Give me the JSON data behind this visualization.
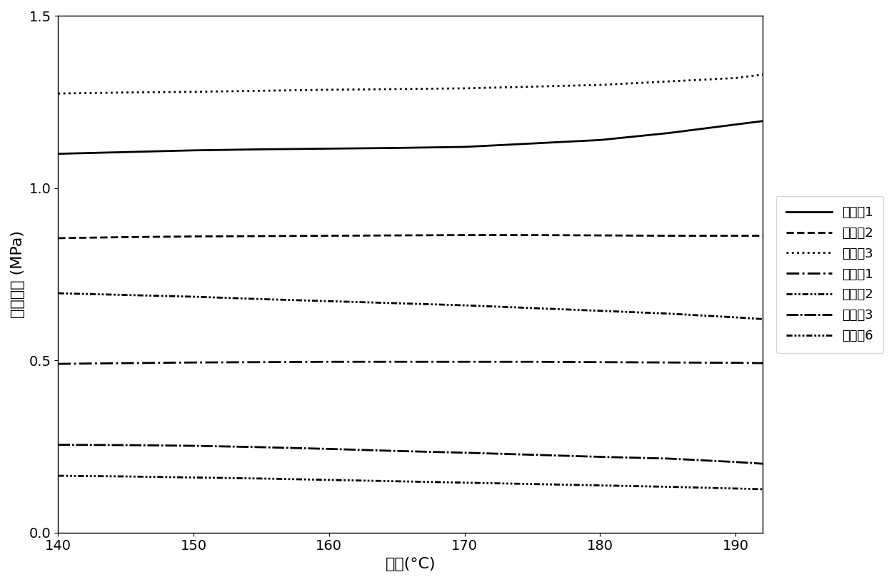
{
  "title": "",
  "xlabel": "温度(°C)",
  "ylabel": "储能模量 (MPa)",
  "xlim": [
    140,
    192
  ],
  "ylim": [
    0.0,
    1.5
  ],
  "xticks": [
    140,
    150,
    160,
    170,
    180,
    190
  ],
  "yticks": [
    0.0,
    0.5,
    1.0,
    1.5
  ],
  "x": [
    140,
    145,
    150,
    155,
    160,
    165,
    170,
    175,
    180,
    185,
    190,
    192
  ],
  "series": [
    {
      "label": "实施例1",
      "linestyle": "solid",
      "linewidth": 2.0,
      "color": "#000000",
      "y": [
        1.1,
        1.105,
        1.11,
        1.113,
        1.115,
        1.117,
        1.12,
        1.13,
        1.14,
        1.16,
        1.185,
        1.195
      ]
    },
    {
      "label": "实施例2",
      "linestyle": "dashed",
      "linewidth": 2.0,
      "color": "#000000",
      "y": [
        0.855,
        0.858,
        0.86,
        0.861,
        0.862,
        0.863,
        0.864,
        0.864,
        0.863,
        0.862,
        0.862,
        0.862
      ]
    },
    {
      "label": "实施例3",
      "linestyle": "dotted",
      "linewidth": 2.0,
      "color": "#000000",
      "y": [
        1.275,
        1.278,
        1.28,
        1.283,
        1.286,
        1.288,
        1.29,
        1.295,
        1.3,
        1.31,
        1.32,
        1.33
      ]
    },
    {
      "label": "对比例1",
      "linestyle": "dashdot",
      "linewidth": 2.0,
      "color": "#000000",
      "y": [
        0.49,
        0.492,
        0.494,
        0.495,
        0.496,
        0.496,
        0.496,
        0.496,
        0.495,
        0.494,
        0.493,
        0.492
      ]
    },
    {
      "label": "对比例2",
      "linestyle": "custom_dash_dot_dot",
      "linewidth": 2.0,
      "color": "#000000",
      "y": [
        0.695,
        0.69,
        0.685,
        0.678,
        0.672,
        0.666,
        0.66,
        0.652,
        0.644,
        0.636,
        0.625,
        0.62
      ]
    },
    {
      "label": "对比例3",
      "linestyle": "custom_long_dashdot",
      "linewidth": 2.0,
      "color": "#000000",
      "y": [
        0.255,
        0.254,
        0.252,
        0.248,
        0.243,
        0.237,
        0.232,
        0.226,
        0.22,
        0.215,
        0.205,
        0.2
      ]
    },
    {
      "label": "对比例6",
      "linestyle": "custom_dash_dot_dot_dot",
      "linewidth": 2.0,
      "color": "#000000",
      "y": [
        0.165,
        0.163,
        0.16,
        0.157,
        0.153,
        0.149,
        0.145,
        0.141,
        0.137,
        0.133,
        0.128,
        0.126
      ]
    }
  ],
  "legend_fontsize": 13,
  "axis_label_fontsize": 16,
  "tick_fontsize": 14,
  "background_color": "#ffffff"
}
